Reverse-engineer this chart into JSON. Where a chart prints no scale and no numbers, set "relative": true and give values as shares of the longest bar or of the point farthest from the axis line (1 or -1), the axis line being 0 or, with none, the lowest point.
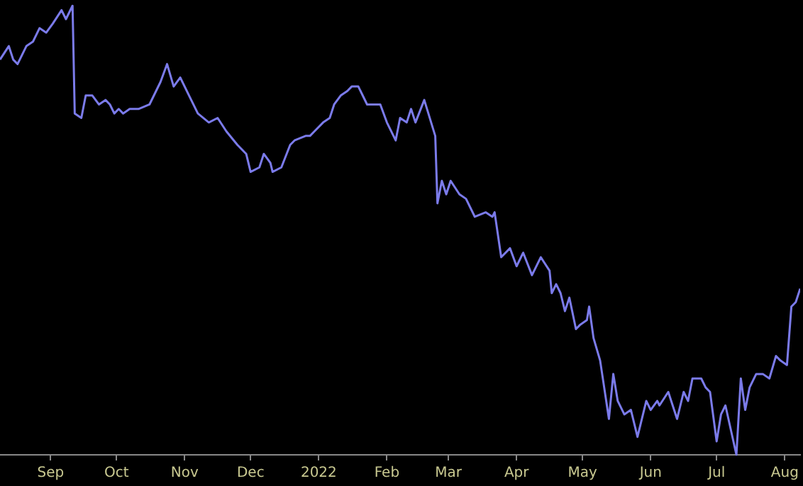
{
  "chart_data": {
    "type": "line",
    "relative": true,
    "color": "#7b7bea",
    "marker": "none",
    "xlim": [
      "2021-08-09",
      "2022-08-08"
    ],
    "xticks": [
      {
        "value": "2021-09-01",
        "label": "Sep"
      },
      {
        "value": "2021-10-01",
        "label": "Oct"
      },
      {
        "value": "2021-11-01",
        "label": "Nov"
      },
      {
        "value": "2021-12-01",
        "label": "Dec"
      },
      {
        "value": "2022-01-01",
        "label": "2022"
      },
      {
        "value": "2022-02-01",
        "label": "Feb"
      },
      {
        "value": "2022-03-01",
        "label": "Mar"
      },
      {
        "value": "2022-04-01",
        "label": "Apr"
      },
      {
        "value": "2022-05-01",
        "label": "May"
      },
      {
        "value": "2022-06-01",
        "label": "Jun"
      },
      {
        "value": "2022-07-01",
        "label": "Jul"
      },
      {
        "value": "2022-08-01",
        "label": "Aug"
      }
    ],
    "x": [
      "2021-08-09",
      "2021-08-13",
      "2021-08-15",
      "2021-08-17",
      "2021-08-21",
      "2021-08-24",
      "2021-08-27",
      "2021-08-30",
      "2021-09-02",
      "2021-09-06",
      "2021-09-08",
      "2021-09-11",
      "2021-09-12",
      "2021-09-15",
      "2021-09-17",
      "2021-09-20",
      "2021-09-23",
      "2021-09-26",
      "2021-09-28",
      "2021-09-30",
      "2021-10-02",
      "2021-10-04",
      "2021-10-07",
      "2021-10-11",
      "2021-10-16",
      "2021-10-21",
      "2021-10-24",
      "2021-10-27",
      "2021-10-30",
      "2021-11-03",
      "2021-11-07",
      "2021-11-12",
      "2021-11-16",
      "2021-11-20",
      "2021-11-25",
      "2021-11-29",
      "2021-12-01",
      "2021-12-05",
      "2021-12-07",
      "2021-12-10",
      "2021-12-11",
      "2021-12-15",
      "2021-12-19",
      "2021-12-21",
      "2021-12-26",
      "2021-12-28",
      "2021-12-30",
      "2022-01-03",
      "2022-01-06",
      "2022-01-08",
      "2022-01-11",
      "2022-01-14",
      "2022-01-16",
      "2022-01-19",
      "2022-01-23",
      "2022-01-29",
      "2022-02-01",
      "2022-02-05",
      "2022-02-07",
      "2022-02-10",
      "2022-02-12",
      "2022-02-14",
      "2022-02-18",
      "2022-02-23",
      "2022-02-24",
      "2022-02-26",
      "2022-02-28",
      "2022-03-02",
      "2022-03-06",
      "2022-03-09",
      "2022-03-13",
      "2022-03-18",
      "2022-03-21",
      "2022-03-22",
      "2022-03-25",
      "2022-03-29",
      "2022-04-01",
      "2022-04-04",
      "2022-04-08",
      "2022-04-12",
      "2022-04-16",
      "2022-04-17",
      "2022-04-19",
      "2022-04-21",
      "2022-04-23",
      "2022-04-25",
      "2022-04-28",
      "2022-04-30",
      "2022-05-03",
      "2022-05-04",
      "2022-05-06",
      "2022-05-09",
      "2022-05-13",
      "2022-05-15",
      "2022-05-17",
      "2022-05-20",
      "2022-05-23",
      "2022-05-26",
      "2022-05-30",
      "2022-06-01",
      "2022-06-04",
      "2022-06-05",
      "2022-06-09",
      "2022-06-13",
      "2022-06-16",
      "2022-06-18",
      "2022-06-20",
      "2022-06-24",
      "2022-06-26",
      "2022-06-28",
      "2022-07-01",
      "2022-07-03",
      "2022-07-05",
      "2022-07-10",
      "2022-07-12",
      "2022-07-14",
      "2022-07-16",
      "2022-07-19",
      "2022-07-22",
      "2022-07-25",
      "2022-07-28",
      "2022-07-30",
      "2022-08-02",
      "2022-08-04",
      "2022-08-06",
      "2022-08-08"
    ],
    "values": [
      0.88,
      0.91,
      0.88,
      0.87,
      0.91,
      0.92,
      0.95,
      0.94,
      0.96,
      0.99,
      0.97,
      1,
      0.76,
      0.75,
      0.8,
      0.8,
      0.78,
      0.79,
      0.78,
      0.76,
      0.77,
      0.76,
      0.77,
      0.77,
      0.78,
      0.83,
      0.87,
      0.82,
      0.84,
      0.8,
      0.76,
      0.74,
      0.75,
      0.72,
      0.69,
      0.67,
      0.63,
      0.64,
      0.67,
      0.65,
      0.63,
      0.64,
      0.69,
      0.7,
      0.71,
      0.71,
      0.72,
      0.74,
      0.75,
      0.78,
      0.8,
      0.81,
      0.82,
      0.82,
      0.78,
      0.78,
      0.74,
      0.7,
      0.75,
      0.74,
      0.77,
      0.74,
      0.79,
      0.71,
      0.56,
      0.61,
      0.58,
      0.61,
      0.58,
      0.57,
      0.53,
      0.54,
      0.53,
      0.54,
      0.44,
      0.46,
      0.42,
      0.45,
      0.4,
      0.44,
      0.41,
      0.36,
      0.38,
      0.36,
      0.32,
      0.35,
      0.28,
      0.29,
      0.3,
      0.33,
      0.26,
      0.21,
      0.08,
      0.18,
      0.12,
      0.09,
      0.1,
      0.04,
      0.12,
      0.1,
      0.12,
      0.11,
      0.14,
      0.08,
      0.14,
      0.12,
      0.17,
      0.17,
      0.15,
      0.14,
      0.03,
      0.09,
      0.11,
      0,
      0.17,
      0.1,
      0.15,
      0.18,
      0.18,
      0.17,
      0.22,
      0.21,
      0.2,
      0.33,
      0.34,
      0.37
    ]
  }
}
